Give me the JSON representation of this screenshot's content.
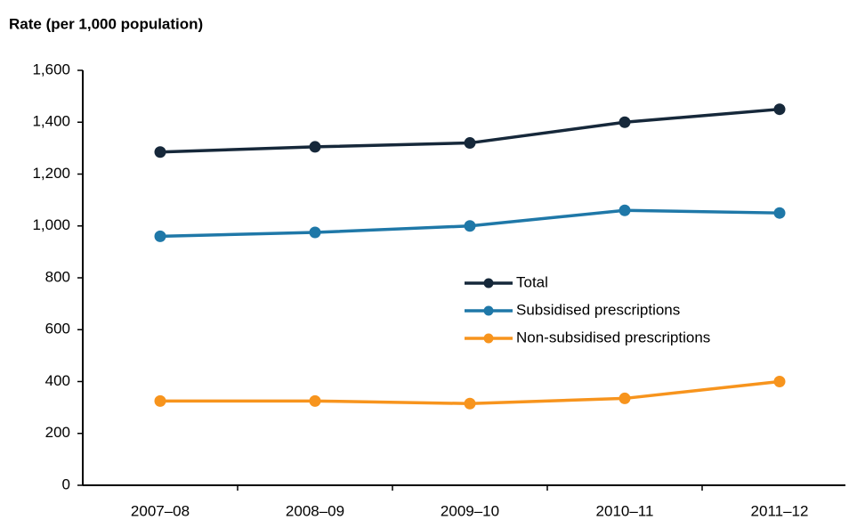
{
  "chart_data": {
    "type": "line",
    "y_axis_label": "Rate (per 1,000 population)",
    "categories": [
      "2007–08",
      "2008–09",
      "2009–10",
      "2010–11",
      "2011–12"
    ],
    "series": [
      {
        "name": "Total",
        "color": "#16283a",
        "values": [
          1285,
          1305,
          1320,
          1400,
          1450
        ]
      },
      {
        "name": "Subsidised prescriptions",
        "color": "#1f78a8",
        "values": [
          960,
          975,
          1000,
          1060,
          1050
        ]
      },
      {
        "name": "Non-subsidised prescriptions",
        "color": "#f7941d",
        "values": [
          325,
          325,
          315,
          335,
          400
        ]
      }
    ],
    "ylim": [
      0,
      1600
    ],
    "yticks": [
      0,
      200,
      400,
      600,
      800,
      {
        "value": 1000,
        "label": "1,000"
      },
      {
        "value": 1200,
        "label": "1,200"
      },
      {
        "value": 1400,
        "label": "1,400"
      },
      {
        "value": 1600,
        "label": "1,600"
      }
    ],
    "grid": false
  }
}
